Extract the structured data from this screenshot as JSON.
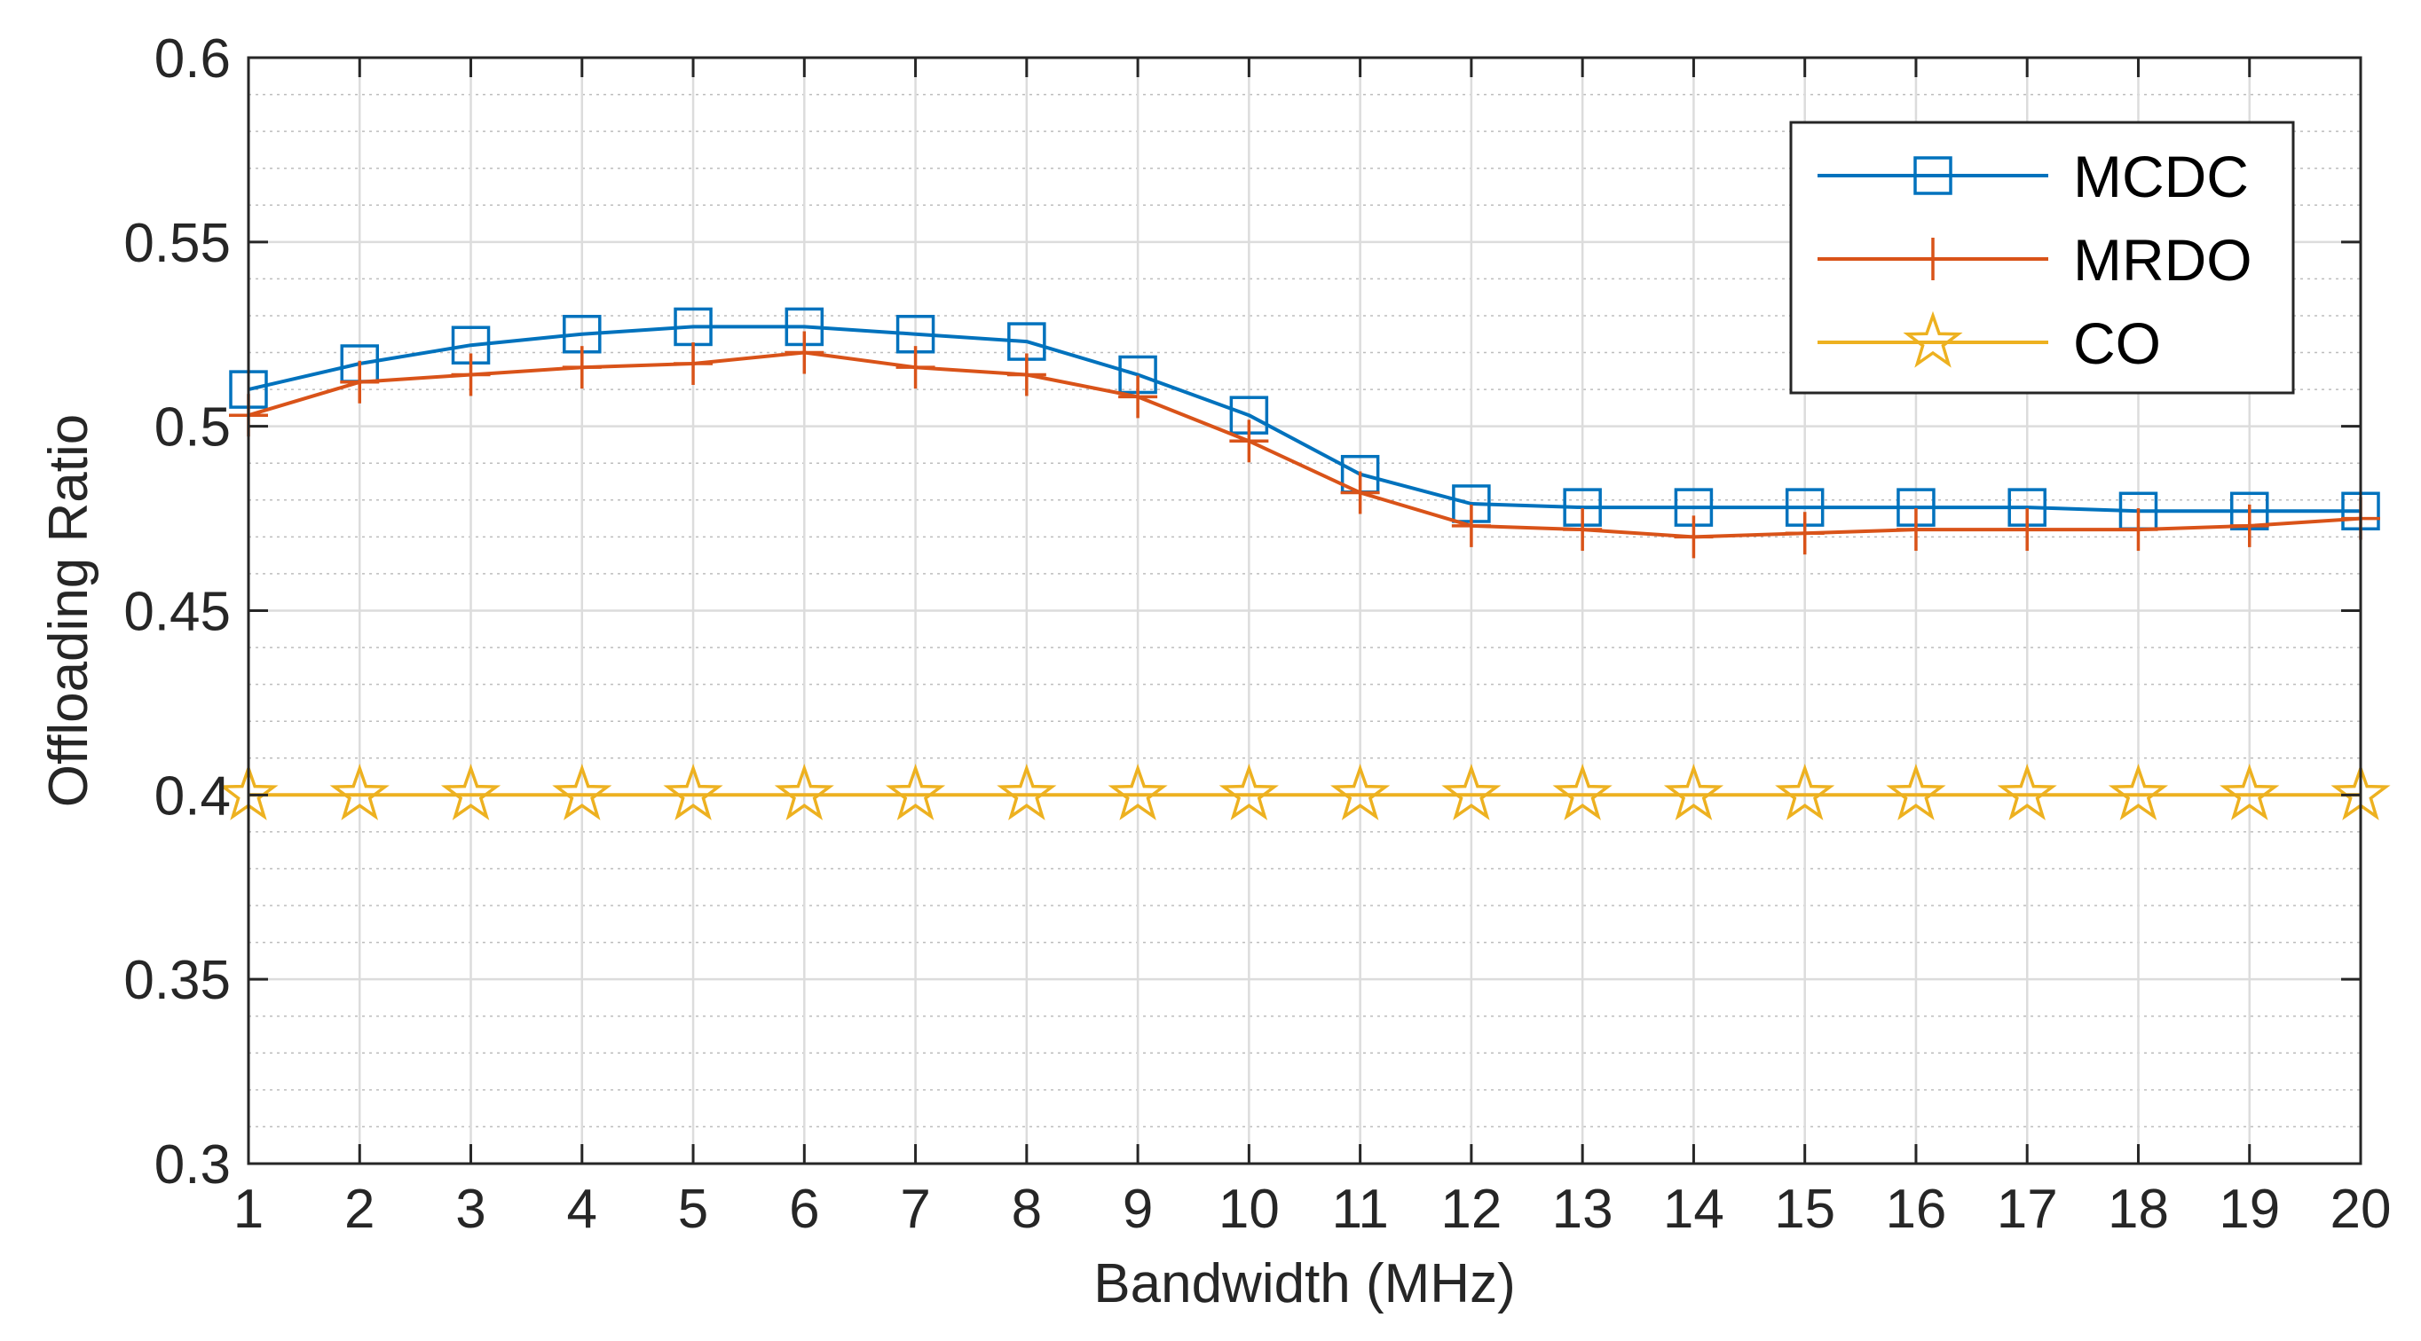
{
  "chart_data": {
    "type": "line",
    "title": "",
    "xlabel": "Bandwidth (MHz)",
    "ylabel": "Offloading Ratio",
    "xlim": [
      1,
      20
    ],
    "ylim": [
      0.3,
      0.6
    ],
    "x": [
      1,
      2,
      3,
      4,
      5,
      6,
      7,
      8,
      9,
      10,
      11,
      12,
      13,
      14,
      15,
      16,
      17,
      18,
      19,
      20
    ],
    "xticks": [
      "1",
      "2",
      "3",
      "4",
      "5",
      "6",
      "7",
      "8",
      "9",
      "10",
      "11",
      "12",
      "13",
      "14",
      "15",
      "16",
      "17",
      "18",
      "19",
      "20"
    ],
    "yticks": [
      {
        "value": 0.3,
        "label": "0.3"
      },
      {
        "value": 0.35,
        "label": "0.35"
      },
      {
        "value": 0.4,
        "label": "0.4"
      },
      {
        "value": 0.45,
        "label": "0.45"
      },
      {
        "value": 0.5,
        "label": "0.5"
      },
      {
        "value": 0.55,
        "label": "0.55"
      },
      {
        "value": 0.6,
        "label": "0.6"
      }
    ],
    "grid": true,
    "minor_grid": true,
    "legend_position": "top-right",
    "series": [
      {
        "name": "MCDC",
        "color": "#0072BD",
        "marker": "square",
        "values": [
          0.51,
          0.517,
          0.522,
          0.525,
          0.527,
          0.527,
          0.525,
          0.523,
          0.514,
          0.503,
          0.487,
          0.479,
          0.478,
          0.478,
          0.478,
          0.478,
          0.478,
          0.477,
          0.477,
          0.477
        ]
      },
      {
        "name": "MRDO",
        "color": "#D95319",
        "marker": "plus",
        "values": [
          0.503,
          0.512,
          0.514,
          0.516,
          0.517,
          0.52,
          0.516,
          0.514,
          0.508,
          0.496,
          0.482,
          0.473,
          0.472,
          0.47,
          0.471,
          0.472,
          0.472,
          0.472,
          0.473,
          0.475
        ]
      },
      {
        "name": "CO",
        "color": "#EDB120",
        "marker": "star",
        "values": [
          0.4,
          0.4,
          0.4,
          0.4,
          0.4,
          0.4,
          0.4,
          0.4,
          0.4,
          0.4,
          0.4,
          0.4,
          0.4,
          0.4,
          0.4,
          0.4,
          0.4,
          0.4,
          0.4,
          0.4
        ]
      }
    ]
  }
}
